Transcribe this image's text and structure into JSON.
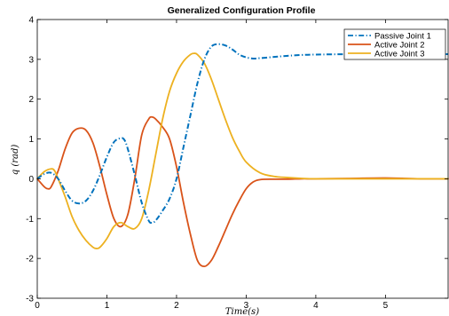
{
  "chart_data": {
    "type": "line",
    "title": "Generalized Configuration Profile",
    "xlabel": "Time(s)",
    "ylabel": "q (rad)",
    "xlim": [
      0,
      5.9
    ],
    "ylim": [
      -3,
      4
    ],
    "xticks": [
      "0",
      "1",
      "2",
      "3",
      "4",
      "5"
    ],
    "yticks": [
      "-3",
      "-2",
      "-1",
      "0",
      "1",
      "2",
      "3",
      "4"
    ],
    "grid": false,
    "legend_position": "top-right",
    "series": [
      {
        "name": "Passive Joint 1",
        "color": "#0072BD",
        "style": "dashdot",
        "x": [
          0,
          0.1,
          0.2,
          0.3,
          0.4,
          0.5,
          0.6,
          0.7,
          0.8,
          0.9,
          1.0,
          1.1,
          1.2,
          1.25,
          1.3,
          1.4,
          1.5,
          1.6,
          1.65,
          1.7,
          1.8,
          1.9,
          2.0,
          2.1,
          2.2,
          2.3,
          2.4,
          2.5,
          2.6,
          2.7,
          2.8,
          2.9,
          3.0,
          3.1,
          3.2,
          3.4,
          3.6,
          3.8,
          4.0,
          4.5,
          5.0,
          5.5,
          5.9
        ],
        "y": [
          0,
          0.12,
          0.15,
          0.0,
          -0.3,
          -0.55,
          -0.62,
          -0.55,
          -0.3,
          0.1,
          0.55,
          0.92,
          1.02,
          0.98,
          0.75,
          0.1,
          -0.6,
          -1.05,
          -1.1,
          -1.05,
          -0.8,
          -0.5,
          0.0,
          0.8,
          1.6,
          2.4,
          3.0,
          3.32,
          3.38,
          3.35,
          3.25,
          3.12,
          3.05,
          3.02,
          3.03,
          3.06,
          3.09,
          3.11,
          3.12,
          3.13,
          3.13,
          3.13,
          3.13
        ]
      },
      {
        "name": "Active Joint 2",
        "color": "#D95319",
        "style": "solid",
        "x": [
          0,
          0.1,
          0.15,
          0.2,
          0.3,
          0.4,
          0.5,
          0.6,
          0.7,
          0.8,
          0.9,
          1.0,
          1.1,
          1.2,
          1.3,
          1.4,
          1.5,
          1.6,
          1.65,
          1.7,
          1.8,
          1.9,
          2.0,
          2.1,
          2.2,
          2.3,
          2.4,
          2.5,
          2.6,
          2.7,
          2.8,
          2.9,
          3.0,
          3.1,
          3.2,
          3.4,
          3.6,
          3.8,
          4.0,
          4.5,
          5.0,
          5.5,
          5.9
        ],
        "y": [
          0,
          -0.2,
          -0.25,
          -0.2,
          0.2,
          0.75,
          1.15,
          1.27,
          1.22,
          0.9,
          0.3,
          -0.4,
          -1.0,
          -1.2,
          -0.9,
          0.0,
          1.1,
          1.5,
          1.55,
          1.5,
          1.3,
          1.0,
          0.3,
          -0.6,
          -1.4,
          -2.05,
          -2.2,
          -2.05,
          -1.7,
          -1.3,
          -0.9,
          -0.55,
          -0.25,
          -0.08,
          -0.02,
          -0.01,
          -0.01,
          0.0,
          0.0,
          0.01,
          0.02,
          0.0,
          0.0
        ]
      },
      {
        "name": "Active Joint 3",
        "color": "#EDB120",
        "style": "solid",
        "x": [
          0,
          0.1,
          0.2,
          0.25,
          0.3,
          0.4,
          0.5,
          0.6,
          0.7,
          0.8,
          0.85,
          0.9,
          1.0,
          1.1,
          1.2,
          1.3,
          1.4,
          1.5,
          1.6,
          1.7,
          1.8,
          1.9,
          2.0,
          2.1,
          2.2,
          2.25,
          2.3,
          2.4,
          2.5,
          2.6,
          2.7,
          2.8,
          2.9,
          3.0,
          3.2,
          3.4,
          3.6,
          3.8,
          4.0,
          4.5,
          5.0,
          5.5,
          5.9
        ],
        "y": [
          0,
          0.18,
          0.25,
          0.2,
          0.0,
          -0.45,
          -0.95,
          -1.3,
          -1.55,
          -1.72,
          -1.75,
          -1.72,
          -1.5,
          -1.2,
          -1.1,
          -1.2,
          -1.25,
          -1.0,
          -0.3,
          0.6,
          1.5,
          2.2,
          2.65,
          2.95,
          3.12,
          3.15,
          3.12,
          2.9,
          2.5,
          2.0,
          1.5,
          1.05,
          0.7,
          0.42,
          0.15,
          0.06,
          0.03,
          0.01,
          0.0,
          0.0,
          0.0,
          0.0,
          0.0
        ]
      }
    ]
  }
}
